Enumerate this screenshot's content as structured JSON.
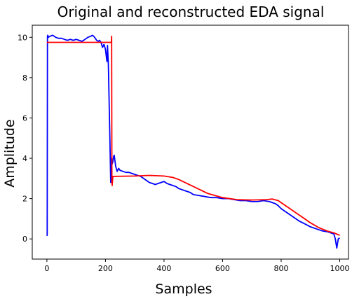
{
  "chart_data": {
    "type": "line",
    "title": "Original and reconstructed EDA signal",
    "xlabel": "Samples",
    "ylabel": "Amplitude",
    "xlim": [
      -50,
      1030
    ],
    "ylim": [
      -1,
      10.6
    ],
    "xticks": [
      0,
      200,
      400,
      600,
      800,
      1000
    ],
    "yticks": [
      0,
      2,
      4,
      6,
      8,
      10
    ],
    "grid": false,
    "series": [
      {
        "color": "#0000ff",
        "x": [
          0,
          1,
          2,
          3,
          5,
          10,
          20,
          30,
          40,
          50,
          60,
          70,
          80,
          90,
          100,
          110,
          120,
          130,
          140,
          150,
          155,
          160,
          163,
          165,
          170,
          175,
          180,
          185,
          190,
          195,
          200,
          205,
          207,
          210,
          212,
          215,
          218,
          220,
          222,
          225,
          228,
          230,
          235,
          240,
          245,
          250,
          260,
          270,
          280,
          290,
          300,
          310,
          320,
          330,
          340,
          350,
          360,
          370,
          380,
          390,
          400,
          410,
          420,
          430,
          440,
          450,
          460,
          470,
          480,
          490,
          500,
          520,
          540,
          560,
          580,
          600,
          620,
          640,
          660,
          680,
          700,
          720,
          740,
          760,
          770,
          780,
          790,
          800,
          820,
          840,
          860,
          880,
          900,
          920,
          940,
          960,
          970,
          980,
          985,
          990,
          995,
          1000
        ],
        "y": [
          0.15,
          0.2,
          10.05,
          10.1,
          10.0,
          10.05,
          10.1,
          10.0,
          9.95,
          9.95,
          9.9,
          9.85,
          9.9,
          9.85,
          9.9,
          9.85,
          9.8,
          9.9,
          10.0,
          10.05,
          10.1,
          10.05,
          10.0,
          9.95,
          9.85,
          9.8,
          9.85,
          9.75,
          9.5,
          9.65,
          9.4,
          8.8,
          9.6,
          8.6,
          7.2,
          5.0,
          2.8,
          4.0,
          3.7,
          3.8,
          4.1,
          4.15,
          3.6,
          3.35,
          3.5,
          3.4,
          3.35,
          3.3,
          3.3,
          3.25,
          3.2,
          3.15,
          3.1,
          3.0,
          2.9,
          2.8,
          2.75,
          2.7,
          2.75,
          2.8,
          2.85,
          2.75,
          2.7,
          2.65,
          2.6,
          2.5,
          2.45,
          2.4,
          2.35,
          2.3,
          2.2,
          2.15,
          2.1,
          2.05,
          2.05,
          2.0,
          2.0,
          1.95,
          1.9,
          1.9,
          1.85,
          1.85,
          1.9,
          1.85,
          1.8,
          1.75,
          1.65,
          1.5,
          1.3,
          1.1,
          0.9,
          0.75,
          0.6,
          0.5,
          0.4,
          0.35,
          0.3,
          0.25,
          0.0,
          -0.45,
          0.0,
          0.05
        ]
      },
      {
        "color": "#ff0000",
        "x": [
          0,
          50,
          100,
          150,
          200,
          220,
          221,
          222,
          223,
          225,
          226,
          230,
          300,
          350,
          400,
          430,
          450,
          500,
          550,
          600,
          650,
          700,
          750,
          770,
          790,
          800,
          820,
          850,
          880,
          900,
          930,
          960,
          980,
          1000
        ],
        "y": [
          9.75,
          9.75,
          9.75,
          9.75,
          9.75,
          9.75,
          10.05,
          2.8,
          2.65,
          3.05,
          3.1,
          3.1,
          3.12,
          3.15,
          3.12,
          3.05,
          2.95,
          2.6,
          2.25,
          2.05,
          1.95,
          1.93,
          1.95,
          1.98,
          1.9,
          1.8,
          1.6,
          1.3,
          1.0,
          0.8,
          0.55,
          0.38,
          0.3,
          0.18
        ]
      }
    ]
  }
}
